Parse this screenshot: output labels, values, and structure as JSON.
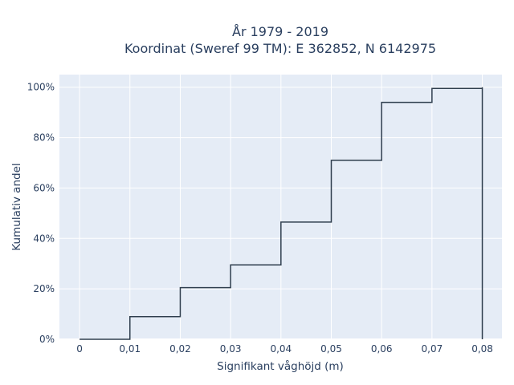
{
  "chart_data": {
    "type": "line",
    "line_shape": "step",
    "title": [
      "År 1979 - 2019",
      "Koordinat (Sweref 99 TM): E 362852, N 6142975"
    ],
    "xlabel": "Signifikant våghöjd (m)",
    "ylabel": "Kumulativ andel",
    "x_ticks": [
      "0",
      "0,01",
      "0,02",
      "0,03",
      "0,04",
      "0,05",
      "0,06",
      "0,07",
      "0,08"
    ],
    "y_ticks": [
      "0%",
      "20%",
      "40%",
      "60%",
      "80%",
      "100%"
    ],
    "xlim": [
      -0.004,
      0.0839
    ],
    "ylim": [
      0,
      1.05
    ],
    "grid": true,
    "series": [
      {
        "x": [
          0,
          0.01,
          0.02,
          0.03,
          0.04,
          0.05,
          0.06,
          0.07,
          0.08,
          0.08
        ],
        "y": [
          0,
          0.09,
          0.205,
          0.295,
          0.465,
          0.71,
          0.94,
          0.995,
          1.0,
          0
        ],
        "color": "#2f3e4e"
      }
    ],
    "colors": {
      "plot_bg": "#e5ecf6",
      "grid": "#ffffff",
      "text": "#2a3f5f",
      "line": "#2f3e4e"
    }
  }
}
